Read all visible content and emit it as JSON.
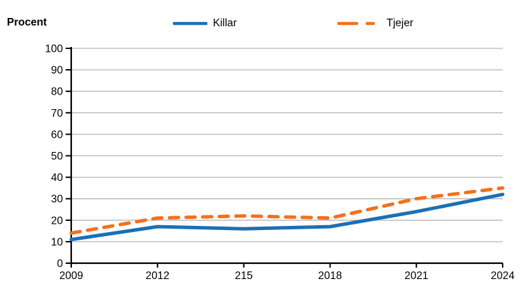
{
  "chart_data": {
    "type": "line",
    "title": "",
    "ylabel": "Procent",
    "xlabel": "",
    "x": [
      "2009",
      "2012",
      "215",
      "2018",
      "2021",
      "2024"
    ],
    "series": [
      {
        "name": "Killar",
        "color": "#1a70b6",
        "style": "solid",
        "values": [
          11,
          17,
          16,
          17,
          24,
          32
        ]
      },
      {
        "name": "Tjejer",
        "color": "#f4701d",
        "style": "dashed",
        "values": [
          14,
          21,
          22,
          21,
          30,
          35
        ]
      }
    ],
    "ylim": [
      0,
      100
    ],
    "ytick_step": 10,
    "y_tick_labels": [
      "0",
      "10",
      "20",
      "30",
      "40",
      "50",
      "60",
      "70",
      "80",
      "90",
      "100"
    ],
    "grid": "horizontal",
    "gridline_color": "#b7b7b7",
    "axis_color": "#000000",
    "text_color": "#000000",
    "legend_position": "top"
  }
}
